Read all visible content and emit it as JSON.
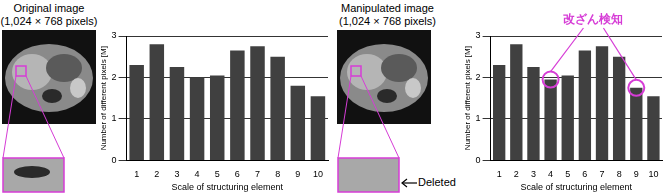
{
  "chart_data": [
    {
      "type": "bar",
      "categories": [
        1,
        2,
        3,
        4,
        5,
        6,
        7,
        8,
        9,
        10
      ],
      "values": [
        2.3,
        2.8,
        2.25,
        2.0,
        2.05,
        2.65,
        2.75,
        2.5,
        1.8,
        1.55
      ],
      "color": "#404040",
      "x_label": "Scale of structuring element",
      "y_label": "Number of different pixels [M]",
      "ylim": [
        0,
        3
      ],
      "yticks": [
        0,
        1,
        2,
        3
      ],
      "grid": true
    },
    {
      "type": "bar",
      "categories": [
        1,
        2,
        3,
        4,
        5,
        6,
        7,
        8,
        9,
        10
      ],
      "values": [
        2.3,
        2.8,
        2.25,
        1.95,
        2.05,
        2.65,
        2.75,
        2.5,
        1.75,
        1.55
      ],
      "color": "#404040",
      "x_label": "Scale of structuring element",
      "y_label": "Number of different pixels [M]",
      "ylim": [
        0,
        3
      ],
      "yticks": [
        0,
        1,
        2,
        3
      ],
      "grid": true,
      "annotations": [
        {
          "text": "改ざん検知",
          "at": [
            4,
            9
          ]
        }
      ]
    }
  ],
  "images": [
    {
      "title": "Original image",
      "subtitle": "(1,024 × 768 pixels)"
    },
    {
      "title": "Manipulated image",
      "subtitle": "(1,024 × 768 pixels)",
      "annotation": "Deleted"
    }
  ]
}
